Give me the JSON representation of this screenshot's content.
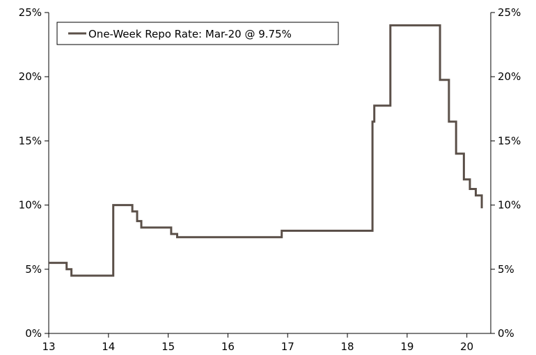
{
  "chart_data": {
    "type": "line",
    "legend": {
      "label": "One-Week Repo Rate: Mar-20 @ 9.75%",
      "placement": "top-left"
    },
    "x_ticks": [
      "13",
      "14",
      "15",
      "16",
      "17",
      "18",
      "19",
      "20"
    ],
    "y_ticks": [
      "0%",
      "5%",
      "10%",
      "15%",
      "20%",
      "25%"
    ],
    "xlim": [
      13,
      20.4
    ],
    "ylim": [
      0,
      25
    ],
    "grid": false,
    "line_color": "#5b5049",
    "series": [
      {
        "step": true,
        "points": [
          [
            13.0,
            5.5
          ],
          [
            13.3,
            5.0
          ],
          [
            13.38,
            4.5
          ],
          [
            14.08,
            10.0
          ],
          [
            14.4,
            9.5
          ],
          [
            14.48,
            8.75
          ],
          [
            14.55,
            8.25
          ],
          [
            15.05,
            7.75
          ],
          [
            15.15,
            7.5
          ],
          [
            16.9,
            8.0
          ],
          [
            18.42,
            16.5
          ],
          [
            18.45,
            17.75
          ],
          [
            18.72,
            24.0
          ],
          [
            19.55,
            19.75
          ],
          [
            19.7,
            16.5
          ],
          [
            19.82,
            14.0
          ],
          [
            19.95,
            12.0
          ],
          [
            20.05,
            11.25
          ],
          [
            20.15,
            10.75
          ],
          [
            20.25,
            9.75
          ]
        ]
      }
    ]
  }
}
